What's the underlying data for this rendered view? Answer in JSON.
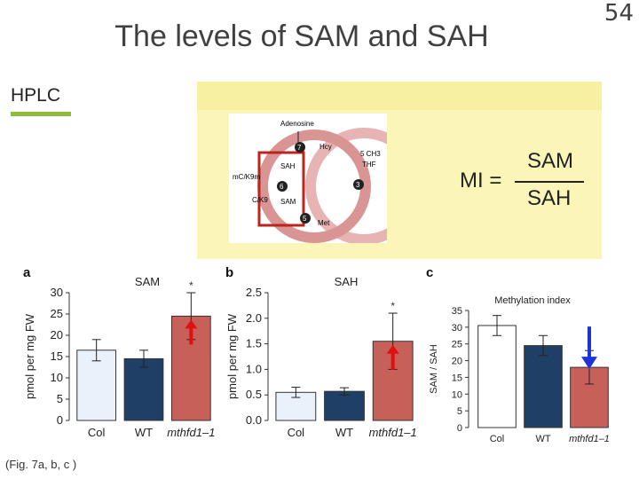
{
  "slide": {
    "title": "The levels of SAM and SAH",
    "number": "54",
    "section_label": "HPLC",
    "caption": "(Fig. 7a, b, c )",
    "accent_color": "#8fbd3a",
    "band_color": "#fbf6b8"
  },
  "formula": {
    "lhs": "MI =",
    "numerator": "SAM",
    "denominator": "SAH"
  },
  "diagram": {
    "labels": [
      "Adenosine",
      "Hcy",
      "SAH",
      "mC/K9m",
      "C/K9",
      "SAM",
      "Met",
      "5 CH3",
      "THF"
    ],
    "steps": [
      "7",
      "6",
      "3",
      "5"
    ]
  },
  "chart_data": [
    {
      "type": "bar",
      "panel": "a",
      "title": "SAM",
      "ylabel": "pmol per mg FW",
      "categories": [
        "Col",
        "WT",
        "mthfd1–1"
      ],
      "values": [
        16.5,
        14.5,
        24.5
      ],
      "errors": [
        2.5,
        2,
        5.5
      ],
      "significance": [
        "",
        "",
        "*"
      ],
      "ylim": [
        0,
        30
      ],
      "yticks": [
        "0",
        "5",
        "10",
        "15",
        "20",
        "25",
        "30"
      ],
      "colors": [
        "#eaf1fb",
        "#1f3f66",
        "#c8605a"
      ],
      "arrow": "up"
    },
    {
      "type": "bar",
      "panel": "b",
      "title": "SAH",
      "ylabel": "pmol per mg FW",
      "categories": [
        "Col",
        "WT",
        "mthfd1–1"
      ],
      "values": [
        0.55,
        0.57,
        1.55
      ],
      "errors": [
        0.1,
        0.07,
        0.55
      ],
      "significance": [
        "",
        "",
        "*"
      ],
      "ylim": [
        0,
        2.5
      ],
      "yticks": [
        "0.0",
        "0.5",
        "1.0",
        "1.5",
        "2.0",
        "2.5"
      ],
      "colors": [
        "#eaf1fb",
        "#1f3f66",
        "#c8605a"
      ],
      "arrow": "up"
    },
    {
      "type": "bar",
      "panel": "c",
      "title": "Methylation index",
      "ylabel": "SAM / SAH",
      "categories": [
        "Col",
        "WT",
        "mthfd1–1"
      ],
      "values": [
        30.5,
        24.5,
        18
      ],
      "errors": [
        3,
        3,
        5
      ],
      "significance": [
        "",
        "",
        ""
      ],
      "ylim": [
        0,
        35
      ],
      "yticks": [
        "0",
        "5",
        "10",
        "15",
        "20",
        "25",
        "30",
        "35"
      ],
      "colors": [
        "#ffffff",
        "#1f3f66",
        "#c8605a"
      ],
      "arrow": "down"
    }
  ]
}
